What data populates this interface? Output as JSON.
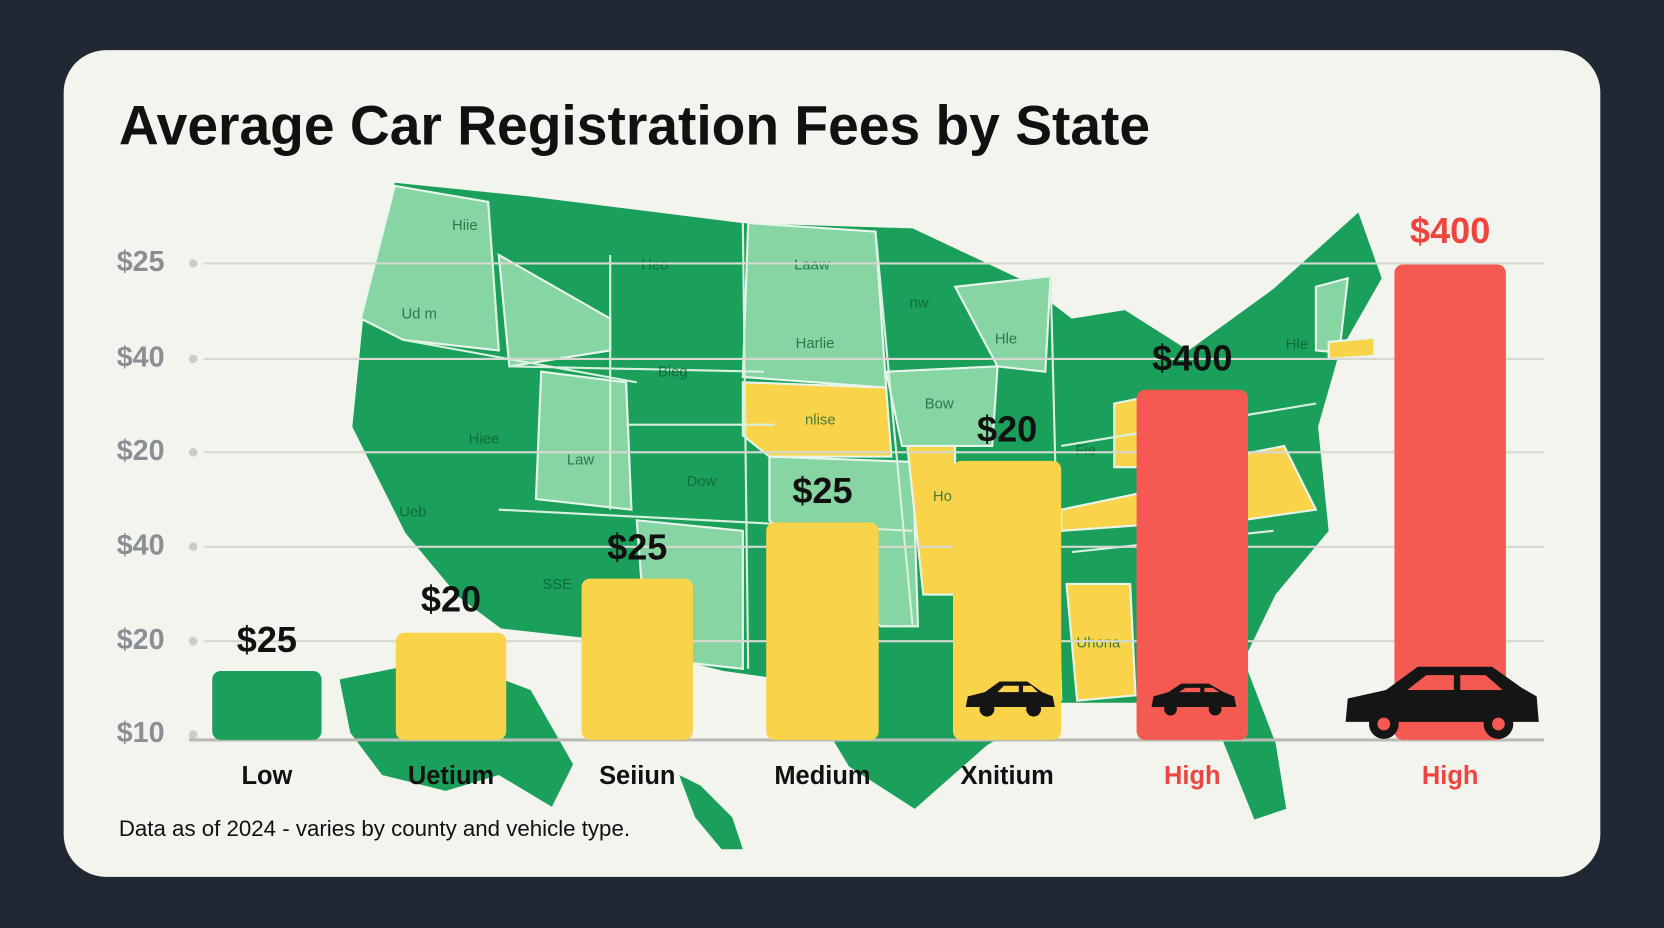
{
  "title": "Average Car Registration Fees by State",
  "y_labels": [
    "$25",
    "$40",
    "$20",
    "$40",
    "$20",
    "$10"
  ],
  "map_labels": [
    "Hiie",
    "Heo",
    "Laaw",
    "Ud m",
    "nw",
    "Harlie",
    "Bieg",
    "Hle",
    "Hle",
    "nlise",
    "Bow",
    "Hiee",
    "Law",
    "Dow",
    "Ueb",
    "Fie",
    "Ho",
    "Uhona",
    "SSE"
  ],
  "bars": [
    {
      "category": "Low",
      "value_label": "$25",
      "color": "#1aa05a",
      "label_color": "#111111",
      "category_color": "#111111"
    },
    {
      "category": "Uetium",
      "value_label": "$20",
      "color": "#f9d44a",
      "label_color": "#111111",
      "category_color": "#111111"
    },
    {
      "category": "Seiiun",
      "value_label": "$25",
      "color": "#f9d44a",
      "label_color": "#111111",
      "category_color": "#111111"
    },
    {
      "category": "Medium",
      "value_label": "$25",
      "color": "#f9d44a",
      "label_color": "#111111",
      "category_color": "#111111"
    },
    {
      "category": "Xnitium",
      "value_label": "$20",
      "color": "#f9d44a",
      "label_color": "#111111",
      "category_color": "#111111"
    },
    {
      "category": "High",
      "value_label": "$400",
      "color": "#f45a52",
      "label_color": "#111111",
      "category_color": "#f0453f"
    },
    {
      "category": "High",
      "value_label": "$400",
      "color": "#f45a52",
      "label_color": "#f0453f",
      "category_color": "#f0453f"
    }
  ],
  "footnote": "Data as of 2024 - varies by county and vehicle type."
}
